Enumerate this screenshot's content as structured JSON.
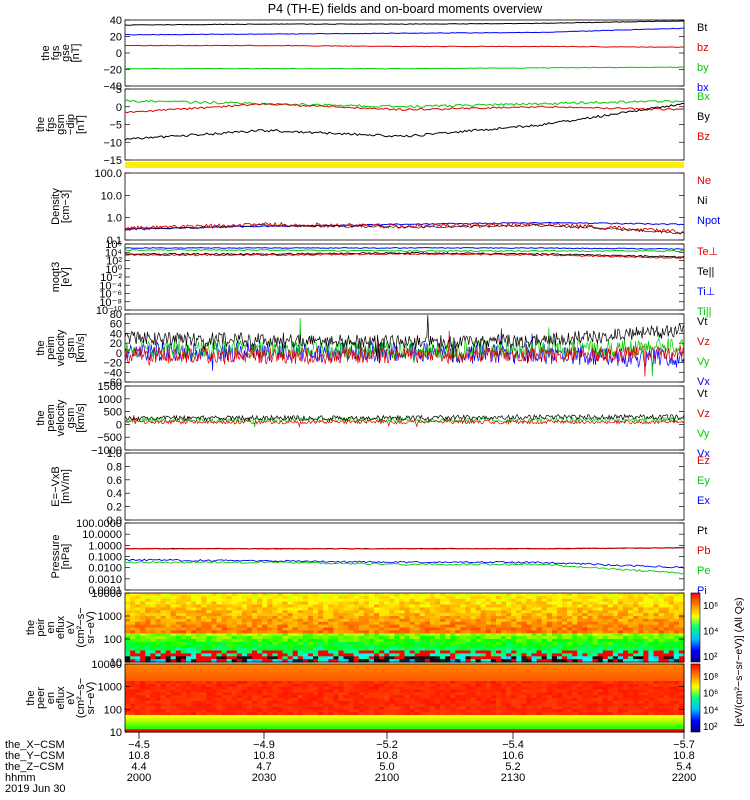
{
  "title": "P4 (TH-E) fields and on-board moments overview",
  "colors": {
    "black": "#000000",
    "red": "#e00000",
    "green": "#00cc00",
    "blue": "#0000ff",
    "yellow": "#ffee00"
  },
  "panels": [
    {
      "id": "fgs-gse",
      "ylabel": [
        "the",
        "fgs",
        "gse",
        "[nT]"
      ],
      "ytick_labels": [
        "40",
        "20",
        "0",
        "−20",
        "−40"
      ],
      "ylim": [
        -40,
        40
      ],
      "legend": [
        {
          "label": "Bt",
          "color": "#000000"
        },
        {
          "label": "bz",
          "color": "#e00000"
        },
        {
          "label": "by",
          "color": "#00cc00"
        },
        {
          "label": "bx",
          "color": "#0000ff"
        }
      ]
    },
    {
      "id": "fgs-dgsm",
      "ylabel": [
        "the",
        "fgs",
        "gsm",
        "−dip",
        "[nT]"
      ],
      "ytick_labels": [
        "5",
        "0",
        "−5",
        "−10",
        "−15"
      ],
      "ylim": [
        -17,
        7
      ],
      "legend": [
        {
          "label": "Bx",
          "color": "#00cc00"
        },
        {
          "label": "By",
          "color": "#000000"
        },
        {
          "label": "Bz",
          "color": "#e00000"
        }
      ]
    },
    {
      "id": "density",
      "ylabel": [
        "Density",
        "[cm−3]"
      ],
      "ytick_labels": [
        "100.0",
        "10.0",
        "1.0",
        "0.1"
      ],
      "ylim": [
        0.08,
        200
      ],
      "log": true,
      "legend": [
        {
          "label": "Ne",
          "color": "#e00000"
        },
        {
          "label": "Ni",
          "color": "#000000"
        },
        {
          "label": "Npot",
          "color": "#0000ff"
        }
      ]
    },
    {
      "id": "temperature",
      "ylabel": [
        "moqt3",
        "[eV]"
      ],
      "ytick_labels": [
        "10⁶",
        "10⁴",
        "10²",
        "10⁰",
        "10⁻²",
        "10⁻⁴",
        "10⁻⁶",
        "10⁻⁸",
        "10⁻¹⁰"
      ],
      "ylim": [
        -10,
        6
      ],
      "log": true,
      "legend": [
        {
          "label": "Te⊥",
          "color": "#e00000"
        },
        {
          "label": "Te||",
          "color": "#000000"
        },
        {
          "label": "Ti⊥",
          "color": "#0000ff"
        },
        {
          "label": "Ti||",
          "color": "#00cc00"
        }
      ]
    },
    {
      "id": "peim-velocity",
      "ylabel": [
        "the",
        "peim",
        "velocity",
        "gsm",
        "[km/s]"
      ],
      "ytick_labels": [
        "80",
        "60",
        "40",
        "20",
        "0",
        "−20",
        "−40",
        "−60"
      ],
      "ylim": [
        -70,
        90
      ],
      "legend": [
        {
          "label": "Vt",
          "color": "#000000"
        },
        {
          "label": "Vz",
          "color": "#e00000"
        },
        {
          "label": "Vy",
          "color": "#00cc00"
        },
        {
          "label": "Vx",
          "color": "#0000ff"
        }
      ]
    },
    {
      "id": "peem-velocity",
      "ylabel": [
        "the",
        "peem",
        "velocity",
        "gsm",
        "[km/s]"
      ],
      "ytick_labels": [
        "1500",
        "1000",
        "500",
        "0",
        "−500",
        "−1000"
      ],
      "ylim": [
        -1500,
        1700
      ],
      "legend": [
        {
          "label": "Vt",
          "color": "#000000"
        },
        {
          "label": "Vz",
          "color": "#e00000"
        },
        {
          "label": "Vy",
          "color": "#00cc00"
        },
        {
          "label": "Vx",
          "color": "#0000ff"
        }
      ]
    },
    {
      "id": "efield",
      "ylabel": [
        "E=−VxB",
        "[mV/m]"
      ],
      "ytick_labels": [
        "1.0",
        "0.8",
        "0.6",
        "0.4",
        "0.2",
        "0.0"
      ],
      "ylim": [
        0,
        1
      ],
      "legend": [
        {
          "label": "Ez",
          "color": "#e00000"
        },
        {
          "label": "Ey",
          "color": "#00cc00"
        },
        {
          "label": "Ex",
          "color": "#0000ff"
        }
      ]
    },
    {
      "id": "pressure",
      "ylabel": [
        "Pressure",
        "[nPa]"
      ],
      "ytick_labels": [
        "100.0000",
        "10.0000",
        "1.0000",
        "0.1000",
        "0.0100",
        "0.0010",
        "0.0001"
      ],
      "ylim": [
        -4,
        2
      ],
      "log": true,
      "legend": [
        {
          "label": "Pt",
          "color": "#000000"
        },
        {
          "label": "Pb",
          "color": "#e00000"
        },
        {
          "label": "Pe",
          "color": "#00cc00"
        },
        {
          "label": "Pi",
          "color": "#0000ff"
        }
      ]
    },
    {
      "id": "peir-spectrogram",
      "ylabel": [
        "the",
        "peir",
        "en",
        "eflux",
        "eV",
        "(cm²−s−",
        "sr−eV)"
      ],
      "ytick_labels": [
        "10000",
        "1000",
        "100",
        "10"
      ],
      "colorbar_ticks": [
        "10⁶",
        "10⁴",
        "10²"
      ]
    },
    {
      "id": "peer-spectrogram",
      "ylabel": [
        "the",
        "peer",
        "en",
        "eflux",
        "eV",
        "(cm²−s−",
        "sr−eV)"
      ],
      "ytick_labels": [
        "10000",
        "1000",
        "100",
        "10"
      ],
      "colorbar_ticks": [
        "10⁸",
        "10⁶",
        "10⁴",
        "10²"
      ]
    }
  ],
  "colorbar_label": "[eV/(cm²−s−sr−eV)] (All Qs)",
  "footer": {
    "row_labels": [
      "the_X−CSM",
      "the_Y−CSM",
      "the_Z−CSM",
      "hhmm",
      "2019 Jun 30"
    ],
    "columns": [
      {
        "x": "−4.5",
        "y": "10.8",
        "z": "4.4",
        "hhmm": "2000"
      },
      {
        "x": "−4.9",
        "y": "10.8",
        "z": "4.7",
        "hhmm": "2030"
      },
      {
        "x": "−5.2",
        "y": "10.8",
        "z": "5.0",
        "hhmm": "2100"
      },
      {
        "x": "−5.4",
        "y": "10.6",
        "z": "5.2",
        "hhmm": "2130"
      },
      {
        "x": "−5.7",
        "y": "10.8",
        "z": "5.4",
        "hhmm": "2200"
      }
    ]
  },
  "chart_data": {
    "type": "line",
    "x": [
      "2000",
      "2030",
      "2100",
      "2130",
      "2200"
    ],
    "series": [
      {
        "name": "Bt",
        "values": [
          34,
          35,
          35,
          36,
          39
        ]
      },
      {
        "name": "bz",
        "values": [
          9,
          9,
          8,
          8,
          7
        ]
      },
      {
        "name": "by",
        "values": [
          -19,
          -19,
          -19,
          -18,
          -17
        ]
      },
      {
        "name": "bx",
        "values": [
          22,
          23,
          24,
          25,
          30
        ]
      },
      {
        "name": "Bx",
        "values": [
          3,
          2,
          1,
          2,
          3
        ]
      },
      {
        "name": "By",
        "values": [
          -10,
          -7,
          -9,
          -5,
          2
        ]
      },
      {
        "name": "Bz",
        "values": [
          -1,
          2,
          0,
          1,
          0
        ]
      },
      {
        "name": "Ne",
        "values": [
          0.3,
          0.5,
          0.4,
          0.5,
          0.2
        ]
      },
      {
        "name": "Npot",
        "values": [
          0.3,
          0.4,
          0.5,
          0.6,
          0.5
        ]
      },
      {
        "name": "Pt",
        "values": [
          0.5,
          0.5,
          0.5,
          0.5,
          0.6
        ]
      },
      {
        "name": "Pb",
        "values": [
          0.5,
          0.5,
          0.5,
          0.5,
          0.6
        ]
      },
      {
        "name": "Pe",
        "values": [
          0.03,
          0.03,
          0.02,
          0.02,
          0.003
        ]
      },
      {
        "name": "Pi",
        "values": [
          0.05,
          0.04,
          0.03,
          0.03,
          0.01
        ]
      }
    ]
  }
}
